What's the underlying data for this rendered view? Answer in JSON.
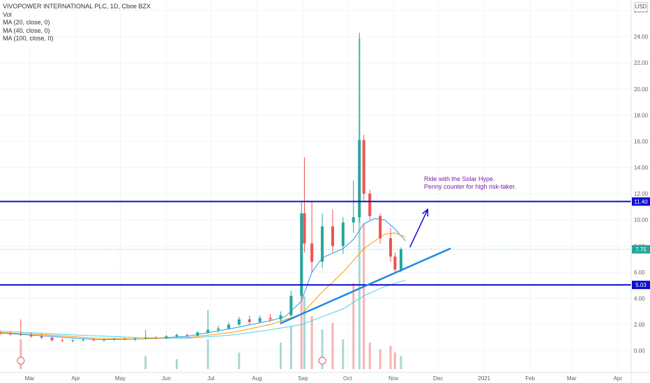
{
  "legend": {
    "symbol": "VIVOPOWER INTERNATIONAL PLC, 1D, Cboe BZX",
    "volume": "Vol",
    "ma20": "MA (20, close, 0)",
    "ma40": "MA (40, close, 0)",
    "ma100": "MA (100, close, 0)"
  },
  "currency": "USD",
  "annotation": {
    "line1": "Ride with the Solar Hype.",
    "line2": "Penny counter for high risk-taker."
  },
  "colors": {
    "up": "#26a69a",
    "down": "#ef5350",
    "ma20": "#2196f3",
    "ma40": "#ff9800",
    "ma100": "#4dd0e1",
    "level_line": "#0d0dcc",
    "trend_line": "#1e88e5",
    "annotation_text": "#7b1fa2",
    "last_price": "#26a69a",
    "volume_up": "#a8d8d3",
    "volume_down": "#f6b3b1"
  },
  "chart_data": {
    "type": "candlestick",
    "ylim": [
      -1.4,
      26.8
    ],
    "y_ticks": [
      "0.00",
      "2.00",
      "4.00",
      "6.00",
      "8.00",
      "10.00",
      "12.00",
      "14.00",
      "16.00",
      "18.00",
      "20.00",
      "22.00",
      "24.00",
      "26.00"
    ],
    "x_ticks": [
      "Mar",
      "Apr",
      "May",
      "Jun",
      "Jul",
      "Aug",
      "Sep",
      "Oct",
      "Nov",
      "Dec",
      "2021",
      "Feb",
      "Mar",
      "Apr"
    ],
    "x_tick_dates": [
      "2020-03-01",
      "2020-04-01",
      "2020-05-01",
      "2020-06-01",
      "2020-07-01",
      "2020-08-01",
      "2020-09-01",
      "2020-10-01",
      "2020-11-01",
      "2020-12-01",
      "2021-01-01",
      "2021-02-01",
      "2021-03-01",
      "2021-04-01"
    ],
    "x_range": [
      "2020-02-10",
      "2021-04-10"
    ],
    "horizontal_levels": [
      {
        "value": 11.4,
        "label": "11.40"
      },
      {
        "value": 5.03,
        "label": "5.03"
      }
    ],
    "last_price": {
      "value": 7.75,
      "label": "7.75"
    },
    "trend_line": {
      "from": {
        "date": "2020-08-17",
        "value": 2.1
      },
      "to": {
        "date": "2020-12-09",
        "value": 7.8
      }
    },
    "arrow": {
      "from": {
        "date": "2020-11-12",
        "value": 7.9
      },
      "to": {
        "date": "2020-11-24",
        "value": 10.8
      }
    },
    "ohlc": [
      {
        "d": "2020-02-10",
        "o": 1.4,
        "h": 1.55,
        "l": 1.2,
        "c": 1.3
      },
      {
        "d": "2020-02-17",
        "o": 1.3,
        "h": 1.45,
        "l": 1.15,
        "c": 1.25
      },
      {
        "d": "2020-02-24",
        "o": 1.25,
        "h": 2.4,
        "l": 1.1,
        "c": 1.2
      },
      {
        "d": "2020-03-02",
        "o": 1.2,
        "h": 1.4,
        "l": 1.0,
        "c": 1.1
      },
      {
        "d": "2020-03-09",
        "o": 1.1,
        "h": 1.3,
        "l": 0.9,
        "c": 1.0
      },
      {
        "d": "2020-03-16",
        "o": 1.0,
        "h": 1.1,
        "l": 0.7,
        "c": 0.8
      },
      {
        "d": "2020-03-23",
        "o": 0.8,
        "h": 0.95,
        "l": 0.65,
        "c": 0.75
      },
      {
        "d": "2020-03-30",
        "o": 0.75,
        "h": 0.9,
        "l": 0.65,
        "c": 0.8
      },
      {
        "d": "2020-04-06",
        "o": 0.8,
        "h": 0.95,
        "l": 0.7,
        "c": 0.85
      },
      {
        "d": "2020-04-13",
        "o": 0.85,
        "h": 0.95,
        "l": 0.75,
        "c": 0.8
      },
      {
        "d": "2020-04-20",
        "o": 0.8,
        "h": 0.9,
        "l": 0.7,
        "c": 0.85
      },
      {
        "d": "2020-04-27",
        "o": 0.85,
        "h": 1.0,
        "l": 0.75,
        "c": 0.9
      },
      {
        "d": "2020-05-04",
        "o": 0.9,
        "h": 1.0,
        "l": 0.8,
        "c": 0.85
      },
      {
        "d": "2020-05-11",
        "o": 0.85,
        "h": 1.0,
        "l": 0.75,
        "c": 0.95
      },
      {
        "d": "2020-05-18",
        "o": 0.95,
        "h": 1.6,
        "l": 0.85,
        "c": 1.0
      },
      {
        "d": "2020-05-25",
        "o": 1.0,
        "h": 1.1,
        "l": 0.9,
        "c": 0.95
      },
      {
        "d": "2020-06-01",
        "o": 0.95,
        "h": 1.2,
        "l": 0.9,
        "c": 1.1
      },
      {
        "d": "2020-06-08",
        "o": 1.1,
        "h": 1.3,
        "l": 1.0,
        "c": 1.2
      },
      {
        "d": "2020-06-15",
        "o": 1.2,
        "h": 1.3,
        "l": 1.05,
        "c": 1.15
      },
      {
        "d": "2020-06-22",
        "o": 1.15,
        "h": 1.5,
        "l": 1.1,
        "c": 1.4
      },
      {
        "d": "2020-06-29",
        "o": 1.4,
        "h": 3.1,
        "l": 1.3,
        "c": 1.6
      },
      {
        "d": "2020-07-06",
        "o": 1.6,
        "h": 1.9,
        "l": 1.4,
        "c": 1.7
      },
      {
        "d": "2020-07-13",
        "o": 1.7,
        "h": 2.2,
        "l": 1.6,
        "c": 2.0
      },
      {
        "d": "2020-07-20",
        "o": 2.0,
        "h": 2.6,
        "l": 1.9,
        "c": 2.4
      },
      {
        "d": "2020-07-27",
        "o": 2.4,
        "h": 2.7,
        "l": 2.0,
        "c": 2.2
      },
      {
        "d": "2020-08-03",
        "o": 2.2,
        "h": 2.7,
        "l": 2.1,
        "c": 2.5
      },
      {
        "d": "2020-08-10",
        "o": 2.5,
        "h": 2.8,
        "l": 2.2,
        "c": 2.4
      },
      {
        "d": "2020-08-17",
        "o": 2.4,
        "h": 3.0,
        "l": 2.2,
        "c": 2.7
      },
      {
        "d": "2020-08-24",
        "o": 2.7,
        "h": 4.6,
        "l": 2.6,
        "c": 4.2
      },
      {
        "d": "2020-08-31",
        "o": 4.2,
        "h": 11.4,
        "l": 4.0,
        "c": 10.5
      },
      {
        "d": "2020-09-02",
        "o": 10.5,
        "h": 14.8,
        "l": 7.5,
        "c": 8.2
      },
      {
        "d": "2020-09-07",
        "o": 8.2,
        "h": 11.4,
        "l": 6.0,
        "c": 6.8
      },
      {
        "d": "2020-09-14",
        "o": 6.8,
        "h": 10.5,
        "l": 6.3,
        "c": 9.5
      },
      {
        "d": "2020-09-21",
        "o": 9.5,
        "h": 10.8,
        "l": 7.5,
        "c": 8.0
      },
      {
        "d": "2020-09-28",
        "o": 8.0,
        "h": 10.2,
        "l": 7.4,
        "c": 9.8
      },
      {
        "d": "2020-10-05",
        "o": 9.8,
        "h": 13.0,
        "l": 9.0,
        "c": 10.2
      },
      {
        "d": "2020-10-09",
        "o": 10.2,
        "h": 24.3,
        "l": 9.8,
        "c": 16.1
      },
      {
        "d": "2020-10-12",
        "o": 16.1,
        "h": 16.5,
        "l": 11.4,
        "c": 12.0
      },
      {
        "d": "2020-10-16",
        "o": 12.0,
        "h": 12.3,
        "l": 10.0,
        "c": 10.3
      },
      {
        "d": "2020-10-23",
        "o": 10.3,
        "h": 10.5,
        "l": 8.2,
        "c": 8.6
      },
      {
        "d": "2020-10-30",
        "o": 8.6,
        "h": 9.4,
        "l": 6.8,
        "c": 7.2
      },
      {
        "d": "2020-11-02",
        "o": 7.2,
        "h": 7.5,
        "l": 5.9,
        "c": 6.2
      },
      {
        "d": "2020-11-06",
        "o": 6.2,
        "h": 7.9,
        "l": 6.0,
        "c": 7.75
      }
    ],
    "volume": [
      {
        "d": "2020-02-24",
        "v": 9,
        "up": false
      },
      {
        "d": "2020-05-18",
        "v": 4,
        "up": true
      },
      {
        "d": "2020-06-08",
        "v": 3,
        "up": true
      },
      {
        "d": "2020-06-29",
        "v": 9,
        "up": true
      },
      {
        "d": "2020-07-20",
        "v": 5,
        "up": true
      },
      {
        "d": "2020-08-17",
        "v": 8,
        "up": true
      },
      {
        "d": "2020-08-24",
        "v": 13,
        "up": true
      },
      {
        "d": "2020-08-31",
        "v": 31,
        "up": false
      },
      {
        "d": "2020-09-02",
        "v": 22,
        "up": true
      },
      {
        "d": "2020-09-07",
        "v": 16,
        "up": false
      },
      {
        "d": "2020-09-14",
        "v": 12,
        "up": true
      },
      {
        "d": "2020-09-21",
        "v": 14,
        "up": false
      },
      {
        "d": "2020-09-28",
        "v": 9,
        "up": true
      },
      {
        "d": "2020-10-05",
        "v": 26,
        "up": false
      },
      {
        "d": "2020-10-09",
        "v": 100,
        "up": true
      },
      {
        "d": "2020-10-12",
        "v": 44,
        "up": false
      },
      {
        "d": "2020-10-16",
        "v": 8,
        "up": false
      },
      {
        "d": "2020-10-23",
        "v": 6,
        "up": false
      },
      {
        "d": "2020-10-30",
        "v": 7,
        "up": false
      },
      {
        "d": "2020-11-02",
        "v": 5,
        "up": false
      },
      {
        "d": "2020-11-06",
        "v": 4,
        "up": true
      }
    ],
    "moving_averages": [
      {
        "name": "MA (20, close, 0)",
        "points": [
          [
            "2020-02-10",
            1.35
          ],
          [
            "2020-03-15",
            1.1
          ],
          [
            "2020-04-15",
            0.85
          ],
          [
            "2020-05-15",
            0.9
          ],
          [
            "2020-06-15",
            1.1
          ],
          [
            "2020-07-15",
            1.7
          ],
          [
            "2020-08-10",
            2.3
          ],
          [
            "2020-08-20",
            2.6
          ],
          [
            "2020-08-31",
            3.8
          ],
          [
            "2020-09-07",
            6.0
          ],
          [
            "2020-09-14",
            7.1
          ],
          [
            "2020-09-28",
            7.8
          ],
          [
            "2020-10-05",
            8.5
          ],
          [
            "2020-10-12",
            9.7
          ],
          [
            "2020-10-19",
            10.1
          ],
          [
            "2020-10-26",
            10.0
          ],
          [
            "2020-11-02",
            9.3
          ],
          [
            "2020-11-09",
            8.4
          ]
        ]
      },
      {
        "name": "MA (40, close, 0)",
        "points": [
          [
            "2020-02-10",
            1.4
          ],
          [
            "2020-03-15",
            1.2
          ],
          [
            "2020-04-15",
            0.95
          ],
          [
            "2020-05-15",
            0.9
          ],
          [
            "2020-06-15",
            1.0
          ],
          [
            "2020-07-15",
            1.4
          ],
          [
            "2020-08-10",
            2.0
          ],
          [
            "2020-08-31",
            2.8
          ],
          [
            "2020-09-14",
            4.5
          ],
          [
            "2020-09-28",
            6.0
          ],
          [
            "2020-10-12",
            7.8
          ],
          [
            "2020-10-26",
            8.9
          ],
          [
            "2020-11-02",
            9.0
          ],
          [
            "2020-11-09",
            8.7
          ]
        ]
      },
      {
        "name": "MA (100, close, 0)",
        "points": [
          [
            "2020-02-10",
            1.5
          ],
          [
            "2020-04-01",
            1.2
          ],
          [
            "2020-05-15",
            1.0
          ],
          [
            "2020-06-15",
            0.95
          ],
          [
            "2020-07-15",
            1.2
          ],
          [
            "2020-08-10",
            1.6
          ],
          [
            "2020-08-31",
            2.0
          ],
          [
            "2020-09-14",
            2.6
          ],
          [
            "2020-09-28",
            3.2
          ],
          [
            "2020-10-12",
            4.2
          ],
          [
            "2020-10-26",
            4.9
          ],
          [
            "2020-11-09",
            5.4
          ]
        ]
      }
    ]
  }
}
